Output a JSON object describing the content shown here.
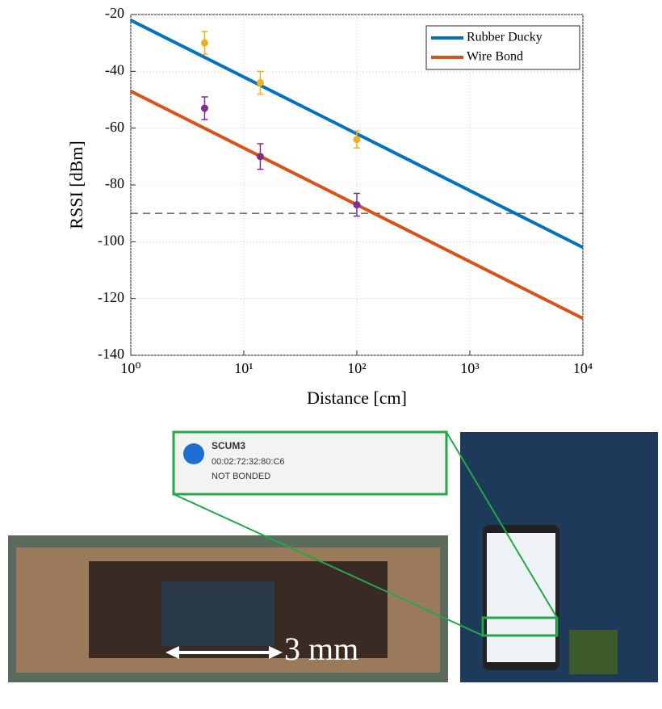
{
  "chart_data": {
    "type": "line",
    "x_label": "Distance [cm]",
    "y_label": "RSSI [dBm]",
    "xscale": "log",
    "xlim": [
      1,
      10000
    ],
    "xticks": [
      {
        "value": 1,
        "label": "10⁰"
      },
      {
        "value": 10,
        "label": "10¹"
      },
      {
        "value": 100,
        "label": "10²"
      },
      {
        "value": 1000,
        "label": "10³"
      },
      {
        "value": 10000,
        "label": "10⁴"
      }
    ],
    "ylim": [
      -140,
      -20
    ],
    "yticks": [
      -140,
      -120,
      -100,
      -80,
      -60,
      -40,
      -20
    ],
    "grid": true,
    "legend": "upper right",
    "hline": -90,
    "series": [
      {
        "name": "Rubber Ducky",
        "color": "#0072bd",
        "x": [
          1,
          10000
        ],
        "values": [
          -22,
          -102
        ],
        "measured": {
          "color": "#edb120",
          "x": [
            4.5,
            14,
            100
          ],
          "values": [
            -30,
            -44,
            -64
          ],
          "errors": [
            4,
            4,
            3
          ]
        }
      },
      {
        "name": "Wire Bond",
        "color": "#d95319",
        "x": [
          1,
          10000
        ],
        "values": [
          -47,
          -127
        ],
        "measured": {
          "color": "#7e2f8e",
          "x": [
            4.5,
            14,
            100
          ],
          "values": [
            -53,
            -70,
            -87
          ],
          "errors": [
            4,
            4.5,
            4
          ]
        }
      }
    ]
  },
  "photos": {
    "callout": {
      "name": "SCUM3",
      "address": "00:02:72:32:80:C6",
      "status": "NOT BONDED"
    },
    "scale_label": "3 mm"
  }
}
